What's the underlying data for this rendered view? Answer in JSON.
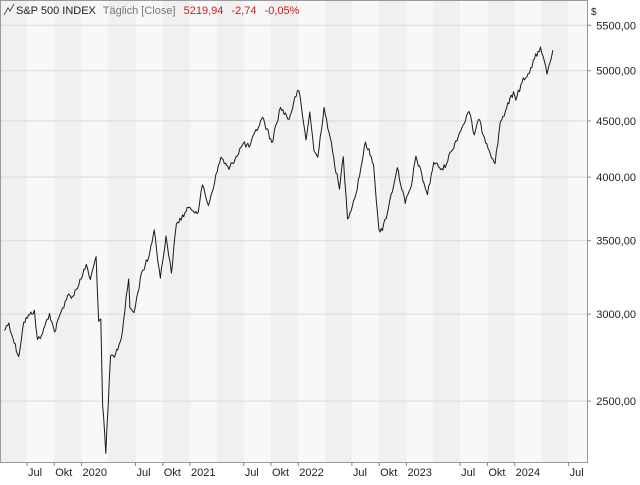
{
  "header": {
    "symbol_icon": "line-chart-icon",
    "title": "S&P 500 INDEX",
    "interval": "Täglich [Close]",
    "last": "5219,94",
    "change": "-2,74",
    "change_pct": "-0,05%",
    "change_color": "#cc1a1a"
  },
  "colors": {
    "band_light": "#f8f8f8",
    "band_dark": "#f0f0f0",
    "grid": "#d9d9d9",
    "line": "#1a1a1a",
    "text": "#222222",
    "muted": "#777777"
  },
  "chart_data": {
    "type": "line",
    "scale": "log",
    "currency": "$",
    "ylim": [
      2200,
      5800
    ],
    "xlim": [
      "2019-04-01",
      "2024-09-01"
    ],
    "yticks": [
      {
        "value": 2500,
        "label": "2500,00"
      },
      {
        "value": 3000,
        "label": "3000,00"
      },
      {
        "value": 3500,
        "label": "3500,00"
      },
      {
        "value": 4000,
        "label": "4000,00"
      },
      {
        "value": 4500,
        "label": "4500,00"
      },
      {
        "value": 5000,
        "label": "5000,00"
      },
      {
        "value": 5500,
        "label": "5500,00"
      }
    ],
    "xticks": [
      {
        "date": "2019-07-01",
        "label": "Jul"
      },
      {
        "date": "2019-10-01",
        "label": "Okt"
      },
      {
        "date": "2020-01-01",
        "label": "2020"
      },
      {
        "date": "2020-07-01",
        "label": "Jul"
      },
      {
        "date": "2020-10-01",
        "label": "Okt"
      },
      {
        "date": "2021-01-01",
        "label": "2021"
      },
      {
        "date": "2021-07-01",
        "label": "Jul"
      },
      {
        "date": "2021-10-01",
        "label": "Okt"
      },
      {
        "date": "2022-01-01",
        "label": "2022"
      },
      {
        "date": "2022-07-01",
        "label": "Jul"
      },
      {
        "date": "2022-10-01",
        "label": "Okt"
      },
      {
        "date": "2023-01-01",
        "label": "2023"
      },
      {
        "date": "2023-07-01",
        "label": "Jul"
      },
      {
        "date": "2023-10-01",
        "label": "Okt"
      },
      {
        "date": "2024-01-01",
        "label": "2024"
      },
      {
        "date": "2024-07-01",
        "label": "Jul"
      }
    ],
    "series": [
      {
        "values": [
          [
            "2019-04-15",
            2900
          ],
          [
            "2019-05-01",
            2945
          ],
          [
            "2019-05-15",
            2850
          ],
          [
            "2019-06-03",
            2745
          ],
          [
            "2019-06-20",
            2950
          ],
          [
            "2019-07-10",
            2995
          ],
          [
            "2019-07-26",
            3025
          ],
          [
            "2019-08-05",
            2845
          ],
          [
            "2019-08-15",
            2850
          ],
          [
            "2019-08-30",
            2925
          ],
          [
            "2019-09-15",
            3005
          ],
          [
            "2019-10-02",
            2890
          ],
          [
            "2019-10-25",
            3020
          ],
          [
            "2019-11-15",
            3120
          ],
          [
            "2019-12-02",
            3115
          ],
          [
            "2019-12-31",
            3230
          ],
          [
            "2020-01-17",
            3330
          ],
          [
            "2020-01-31",
            3225
          ],
          [
            "2020-02-19",
            3385
          ],
          [
            "2020-02-28",
            2955
          ],
          [
            "2020-03-06",
            2970
          ],
          [
            "2020-03-12",
            2480
          ],
          [
            "2020-03-23",
            2240
          ],
          [
            "2020-04-08",
            2750
          ],
          [
            "2020-04-21",
            2740
          ],
          [
            "2020-05-14",
            2850
          ],
          [
            "2020-06-08",
            3230
          ],
          [
            "2020-06-12",
            3040
          ],
          [
            "2020-06-26",
            3010
          ],
          [
            "2020-07-22",
            3275
          ],
          [
            "2020-08-14",
            3375
          ],
          [
            "2020-09-02",
            3580
          ],
          [
            "2020-09-23",
            3235
          ],
          [
            "2020-10-12",
            3535
          ],
          [
            "2020-10-30",
            3270
          ],
          [
            "2020-11-16",
            3625
          ],
          [
            "2020-12-31",
            3755
          ],
          [
            "2021-01-29",
            3715
          ],
          [
            "2021-02-12",
            3935
          ],
          [
            "2021-03-04",
            3770
          ],
          [
            "2021-04-15",
            4170
          ],
          [
            "2021-05-12",
            4065
          ],
          [
            "2021-06-30",
            4295
          ],
          [
            "2021-07-19",
            4260
          ],
          [
            "2021-08-31",
            4520
          ],
          [
            "2021-09-02",
            4535
          ],
          [
            "2021-10-04",
            4300
          ],
          [
            "2021-11-02",
            4630
          ],
          [
            "2021-12-01",
            4515
          ],
          [
            "2021-12-29",
            4795
          ],
          [
            "2022-01-03",
            4796
          ],
          [
            "2022-01-27",
            4325
          ],
          [
            "2022-02-09",
            4585
          ],
          [
            "2022-02-23",
            4225
          ],
          [
            "2022-03-08",
            4170
          ],
          [
            "2022-03-29",
            4630
          ],
          [
            "2022-04-15",
            4390
          ],
          [
            "2022-05-20",
            3900
          ],
          [
            "2022-06-02",
            4175
          ],
          [
            "2022-06-16",
            3665
          ],
          [
            "2022-07-15",
            3865
          ],
          [
            "2022-08-16",
            4305
          ],
          [
            "2022-09-12",
            4110
          ],
          [
            "2022-09-30",
            3585
          ],
          [
            "2022-10-12",
            3575
          ],
          [
            "2022-11-02",
            3760
          ],
          [
            "2022-12-01",
            4080
          ],
          [
            "2022-12-28",
            3785
          ],
          [
            "2023-01-18",
            3930
          ],
          [
            "2023-02-02",
            4180
          ],
          [
            "2023-03-13",
            3855
          ],
          [
            "2023-04-03",
            4125
          ],
          [
            "2023-05-04",
            4060
          ],
          [
            "2023-06-01",
            4220
          ],
          [
            "2023-07-31",
            4590
          ],
          [
            "2023-08-18",
            4370
          ],
          [
            "2023-09-01",
            4515
          ],
          [
            "2023-09-29",
            4290
          ],
          [
            "2023-10-27",
            4115
          ],
          [
            "2023-11-14",
            4495
          ],
          [
            "2023-12-01",
            4595
          ],
          [
            "2023-12-28",
            4785
          ],
          [
            "2024-01-05",
            4700
          ],
          [
            "2024-01-30",
            4925
          ],
          [
            "2024-02-20",
            4975
          ],
          [
            "2024-03-08",
            5125
          ],
          [
            "2024-03-28",
            5255
          ],
          [
            "2024-04-19",
            4965
          ],
          [
            "2024-04-25",
            5050
          ],
          [
            "2024-05-03",
            5125
          ],
          [
            "2024-05-09",
            5220
          ]
        ]
      }
    ]
  }
}
